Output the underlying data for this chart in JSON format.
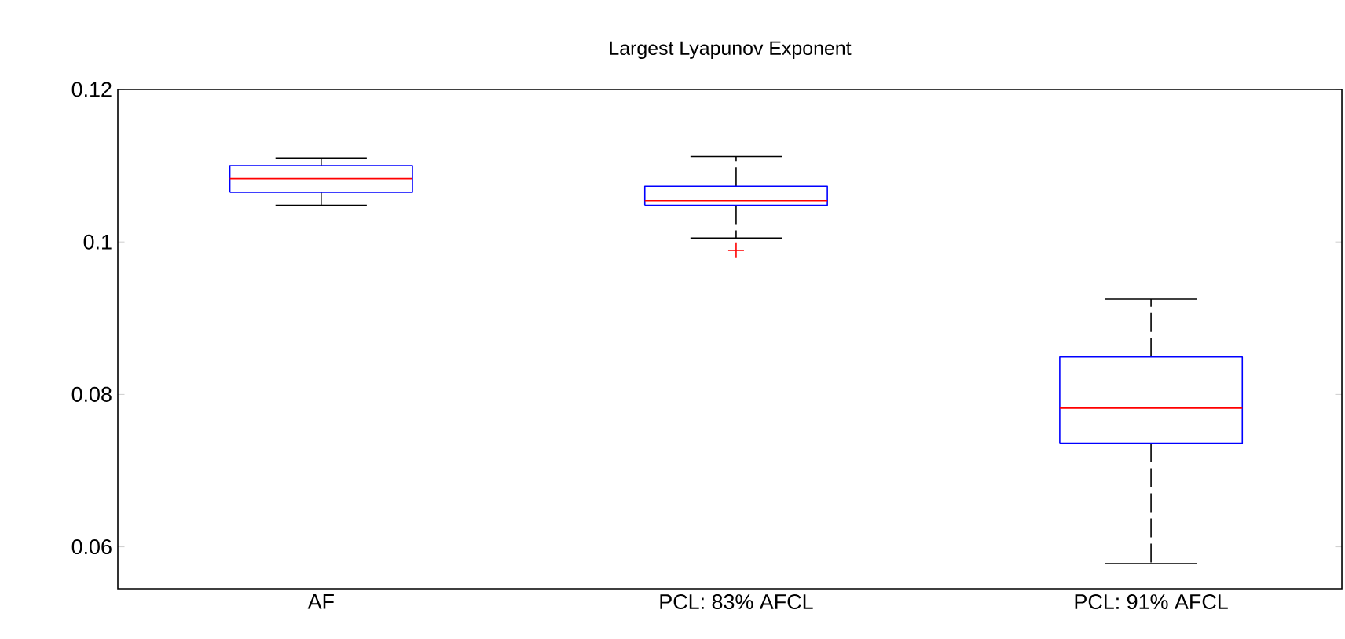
{
  "chart_data": {
    "type": "box",
    "title": "Largest Lyapunov Exponent",
    "categories": [
      "AF",
      "PCL: 83% AFCL",
      "PCL: 91% AFCL"
    ],
    "boxes": [
      {
        "low": 0.1048,
        "q1": 0.1065,
        "median": 0.1083,
        "q3": 0.11,
        "high": 0.111
      },
      {
        "low": 0.1005,
        "q1": 0.1048,
        "median": 0.1054,
        "q3": 0.1073,
        "high": 0.1112,
        "outliers": [
          0.0989
        ]
      },
      {
        "low": 0.0578,
        "q1": 0.0736,
        "median": 0.0782,
        "q3": 0.0849,
        "high": 0.0925
      }
    ],
    "color": "#0000ff",
    "line_style": "dashed",
    "ylim": [
      0.0545,
      0.12
    ],
    "yticks": [
      0.06,
      0.08,
      0.1,
      0.12
    ],
    "grid": false
  }
}
